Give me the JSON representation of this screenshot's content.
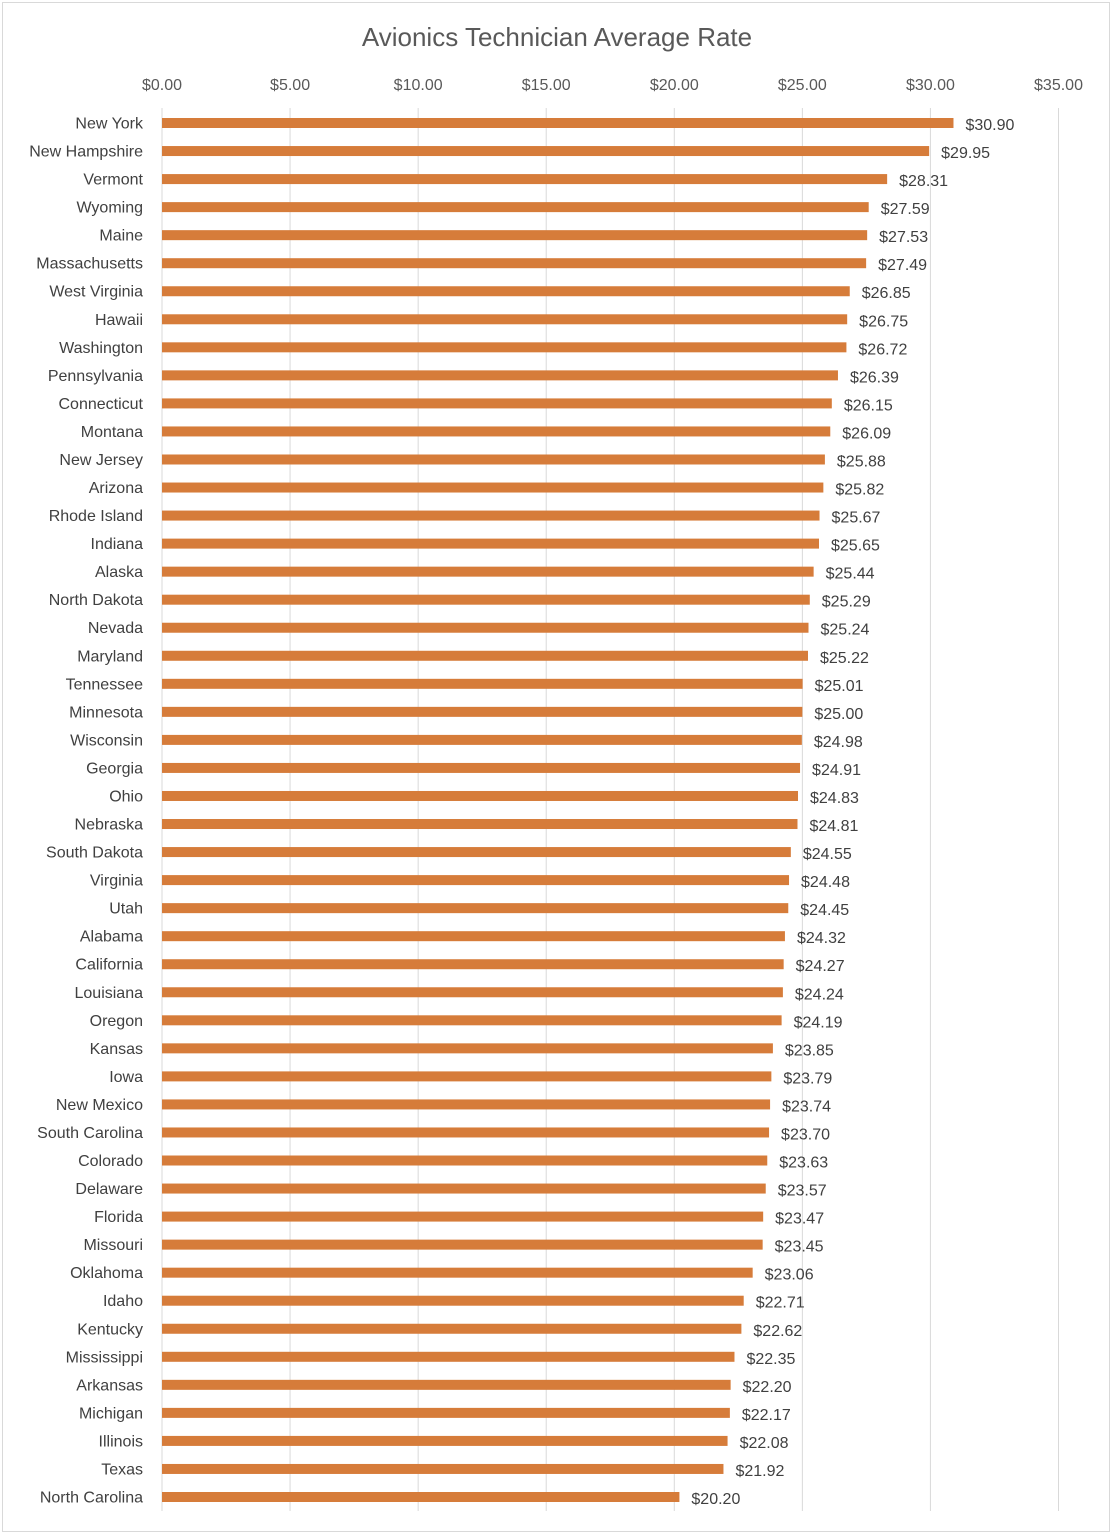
{
  "chart_data": {
    "type": "bar",
    "orientation": "horizontal",
    "title": "Avionics Technician Average Rate",
    "xlabel": "",
    "ylabel": "",
    "xlim": [
      0,
      35
    ],
    "x_ticks": [
      "$0.00",
      "$5.00",
      "$10.00",
      "$15.00",
      "$20.00",
      "$25.00",
      "$30.00",
      "$35.00"
    ],
    "x_axis_position": "top",
    "grid": true,
    "bar_color": "#D67C3A",
    "categories": [
      "New York",
      "New Hampshire",
      "Vermont",
      "Wyoming",
      "Maine",
      "Massachusetts",
      "West Virginia",
      "Hawaii",
      "Washington",
      "Pennsylvania",
      "Connecticut",
      "Montana",
      "New Jersey",
      "Arizona",
      "Rhode Island",
      "Indiana",
      "Alaska",
      "North Dakota",
      "Nevada",
      "Maryland",
      "Tennessee",
      "Minnesota",
      "Wisconsin",
      "Georgia",
      "Ohio",
      "Nebraska",
      "South Dakota",
      "Virginia",
      "Utah",
      "Alabama",
      "California",
      "Louisiana",
      "Oregon",
      "Kansas",
      "Iowa",
      "New Mexico",
      "South Carolina",
      "Colorado",
      "Delaware",
      "Florida",
      "Missouri",
      "Oklahoma",
      "Idaho",
      "Kentucky",
      "Mississippi",
      "Arkansas",
      "Michigan",
      "Illinois",
      "Texas",
      "North Carolina"
    ],
    "values": [
      30.9,
      29.95,
      28.31,
      27.59,
      27.53,
      27.49,
      26.85,
      26.75,
      26.72,
      26.39,
      26.15,
      26.09,
      25.88,
      25.82,
      25.67,
      25.65,
      25.44,
      25.29,
      25.24,
      25.22,
      25.01,
      25.0,
      24.98,
      24.91,
      24.83,
      24.81,
      24.55,
      24.48,
      24.45,
      24.32,
      24.27,
      24.24,
      24.19,
      23.85,
      23.79,
      23.74,
      23.7,
      23.63,
      23.57,
      23.47,
      23.45,
      23.06,
      22.71,
      22.62,
      22.35,
      22.2,
      22.17,
      22.08,
      21.92,
      20.2
    ],
    "data_labels": [
      "$30.90",
      "$29.95",
      "$28.31",
      "$27.59",
      "$27.53",
      "$27.49",
      "$26.85",
      "$26.75",
      "$26.72",
      "$26.39",
      "$26.15",
      "$26.09",
      "$25.88",
      "$25.82",
      "$25.67",
      "$25.65",
      "$25.44",
      "$25.29",
      "$25.24",
      "$25.22",
      "$25.01",
      "$25.00",
      "$24.98",
      "$24.91",
      "$24.83",
      "$24.81",
      "$24.55",
      "$24.48",
      "$24.45",
      "$24.32",
      "$24.27",
      "$24.24",
      "$24.19",
      "$23.85",
      "$23.79",
      "$23.74",
      "$23.70",
      "$23.63",
      "$23.57",
      "$23.47",
      "$23.45",
      "$23.06",
      "$22.71",
      "$22.62",
      "$22.35",
      "$22.20",
      "$22.17",
      "$22.08",
      "$21.92",
      "$20.20"
    ]
  }
}
